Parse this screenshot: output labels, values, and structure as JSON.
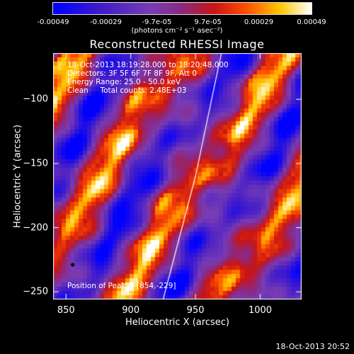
{
  "colorbar": {
    "ticks": [
      "-0.00049",
      "-0.00029",
      "-9.7e-05",
      "9.7e-05",
      "0.00029",
      "0.00049"
    ],
    "tick_values": [
      -0.00049,
      -0.00029,
      -9.7e-05,
      9.7e-05,
      0.00029,
      0.00049
    ],
    "units": "(photons cm⁻² s⁻¹ asec⁻²)"
  },
  "annotation": {
    "time_range": "18-Oct-2013 18:19:28.000 to 18:20:48.000",
    "detectors": "Detectors: 3F 5F 6F 7F 8F 9F, Att 0",
    "energy": "Energy Range: 25.0 - 50.0 keV",
    "clean": "Clean     Total counts: 2.48E+03",
    "peak": "Position of Peak = [854,-229]"
  },
  "footer": {
    "timestamp": "18-Oct-2013 20:52"
  },
  "colors": {
    "background": "#000000",
    "limb": "#ffffff"
  },
  "chart_data": {
    "type": "heatmap",
    "title": "Reconstructed RHESSI Image",
    "xlabel": "Heliocentric X (arcsec)",
    "ylabel": "Heliocentric Y (arcsec)",
    "xlim": [
      840,
      1032
    ],
    "ylim": [
      -256,
      -64
    ],
    "xticks": [
      850,
      900,
      950,
      1000
    ],
    "yticks": [
      -100,
      -150,
      -200,
      -250
    ],
    "colormap": "blue-purple-red-yellow-white",
    "peak_marker": {
      "x": 854,
      "y": -229
    },
    "limb_line": [
      [
        970,
        -64
      ],
      [
        950,
        -160
      ],
      [
        925,
        -256
      ]
    ]
  }
}
